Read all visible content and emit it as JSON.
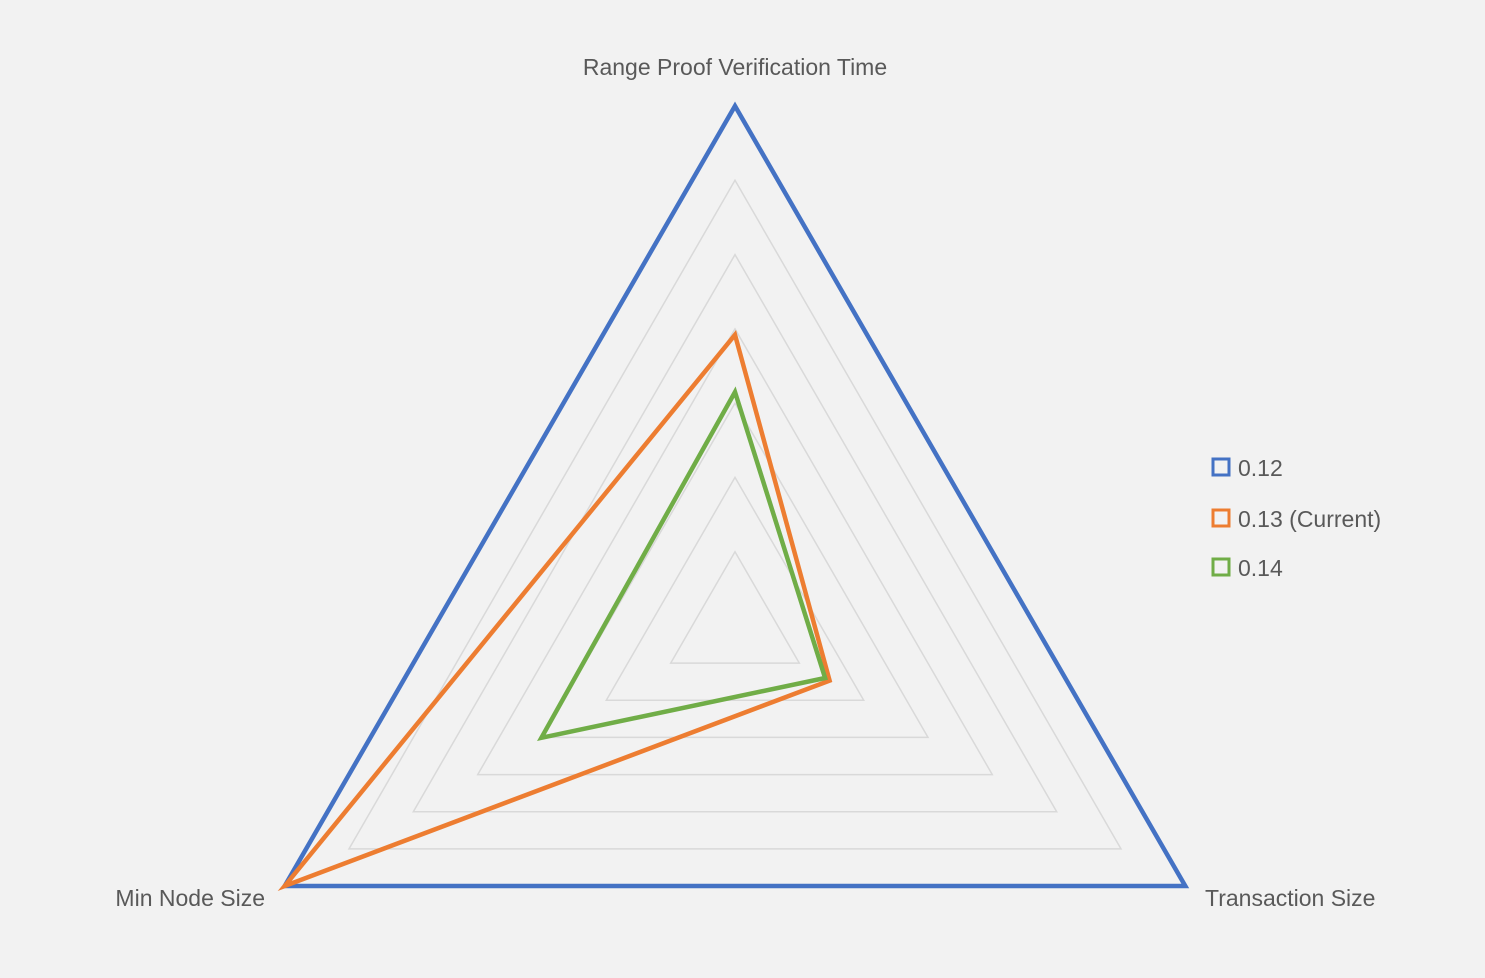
{
  "chart_data": {
    "type": "radar",
    "title": "",
    "categories": [
      "Range Proof Verification Time",
      "Transaction Size",
      "Min Node Size"
    ],
    "rlim": [
      0,
      1
    ],
    "grid_levels": 7,
    "grid": true,
    "legend_position": "right",
    "series": [
      {
        "name": "0.12",
        "values": [
          1.0,
          1.0,
          1.0
        ],
        "color": "#4472c4"
      },
      {
        "name": "0.13 (Current)",
        "values": [
          0.56,
          0.21,
          1.0
        ],
        "color": "#ed7d31"
      },
      {
        "name": "0.14",
        "values": [
          0.45,
          0.2,
          0.43
        ],
        "color": "#70ad47"
      }
    ]
  }
}
